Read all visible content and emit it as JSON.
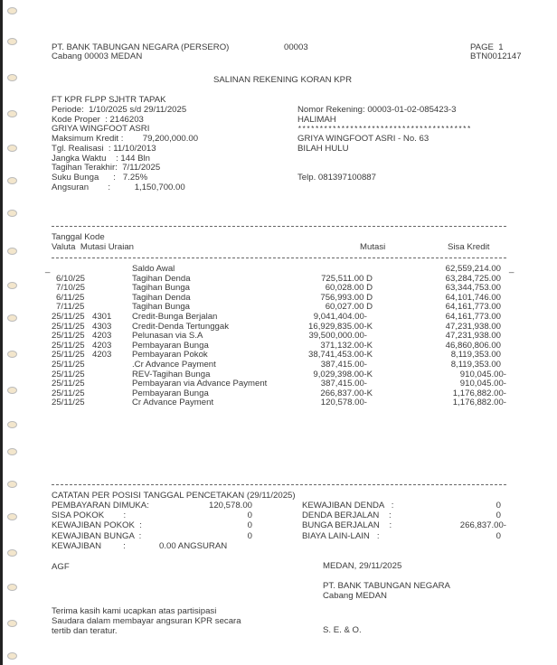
{
  "header": {
    "bank": "PT. BANK TABUNGAN NEGARA (PERSERO)",
    "branch": "Cabang 00003 MEDAN",
    "branch_code": "00003",
    "page": "PAGE  1",
    "doc_id": "BTN0012147"
  },
  "title": "SALINAN REKENING KORAN KPR",
  "info_left": [
    "FT KPR FLPP SJHTR TAPAK",
    "Periode:  1/10/2025 s/d 29/11/2025",
    "Kode Proper  : 2146203",
    "GRIYA WINGFOOT ASRI",
    "Maksimum Kredit :        79,200,000.00",
    "Tgl. Realisasi  : 11/10/2013",
    "Jangka Waktu    : 144 Bln",
    "Tagihan Terakhir:  7/11/2025",
    "Suku Bunga      :   7.25%",
    "Angsuran        :          1,150,700.00"
  ],
  "info_right": {
    "account": "Nomor Rekening: 00003-01-02-085423-3",
    "name": "HALIMAH",
    "stars": "****************************************",
    "address1": "GRIYA WINGFOOT ASRI - No. 63",
    "address2": "BILAH HULU",
    "phone": "Telp. 081397100887"
  },
  "table": {
    "headers": {
      "line1": "Tanggal Kode",
      "line2": "Valuta  Mutasi Uraian",
      "mutasi": "Mutasi",
      "sisa": "Sisa Kredit"
    },
    "rows": [
      {
        "date": "",
        "kode": "",
        "uraian": "Saldo Awal",
        "mutasi": "",
        "sisa": "62,559,214.00"
      },
      {
        "date": "6/10/25",
        "kode": "",
        "uraian": "Tagihan Denda",
        "mutasi": "725,511.00 D",
        "sisa": "63,284,725.00"
      },
      {
        "date": "7/10/25",
        "kode": "",
        "uraian": "Tagihan Bunga",
        "mutasi": "60,028.00 D",
        "sisa": "63,344,753.00"
      },
      {
        "date": "6/11/25",
        "kode": "",
        "uraian": "Tagihan Denda",
        "mutasi": "756,993.00 D",
        "sisa": "64,101,746.00"
      },
      {
        "date": "7/11/25",
        "kode": "",
        "uraian": "Tagihan Bunga",
        "mutasi": "60,027.00 D",
        "sisa": "64,161,773.00"
      },
      {
        "date": "25/11/25",
        "kode": "4301",
        "uraian": "Credit-Bunga Berjalan",
        "mutasi": "9,041,404.00-",
        "sisa": "64,161,773.00"
      },
      {
        "date": "25/11/25",
        "kode": "4303",
        "uraian": "Credit-Denda Tertunggak",
        "mutasi": "16,929,835.00-K",
        "sisa": "47,231,938.00"
      },
      {
        "date": "25/11/25",
        "kode": "4203",
        "uraian": "Pelunasan via S.A",
        "mutasi": "39,500,000.00-",
        "sisa": "47,231,938.00"
      },
      {
        "date": "25/11/25",
        "kode": "4203",
        "uraian": "Pembayaran Bunga",
        "mutasi": "371,132.00-K",
        "sisa": "46,860,806.00"
      },
      {
        "date": "25/11/25",
        "kode": "4203",
        "uraian": "Pembayaran Pokok",
        "mutasi": "38,741,453.00-K",
        "sisa": "8,119,353.00"
      },
      {
        "date": "25/11/25",
        "kode": "",
        "uraian": ".Cr Advance Payment",
        "mutasi": "387,415.00-",
        "sisa": "8,119,353.00"
      },
      {
        "date": "25/11/25",
        "kode": "",
        "uraian": "REV-Tagihan Bunga",
        "mutasi": "9,029,398.00-K",
        "sisa": "910,045.00-"
      },
      {
        "date": "25/11/25",
        "kode": "",
        "uraian": "Pembayaran via Advance Payment",
        "mutasi": "387,415.00-",
        "sisa": "910,045.00-"
      },
      {
        "date": "25/11/25",
        "kode": "",
        "uraian": "Pembayaran Bunga",
        "mutasi": "266,837.00-K",
        "sisa": "1,176,882.00-"
      },
      {
        "date": "25/11/25",
        "kode": "",
        "uraian": "Cr Advance Payment",
        "mutasi": "120,578.00-",
        "sisa": "1,176,882.00-"
      }
    ]
  },
  "notes": {
    "title": "CATATAN PER POSISI TANGGAL PENCETAKAN (29/11/2025)",
    "left": [
      {
        "label": "PEMBAYARAN DIMUKA:",
        "value": "120,578.00"
      },
      {
        "label": "SISA POKOK        :",
        "value": "0"
      },
      {
        "label": "KEWAJIBAN POKOK  :",
        "value": "0"
      },
      {
        "label": "KEWAJIBAN BUNGA  :",
        "value": "0"
      }
    ],
    "right": [
      {
        "label": "KEWAJIBAN DENDA   :",
        "value": "0"
      },
      {
        "label": "DENDA BERJALAN    :",
        "value": "0"
      },
      {
        "label": "BUNGA BERJALAN    :",
        "value": "266,837.00-"
      },
      {
        "label": "BIAYA LAIN-LAIN   :",
        "value": "0"
      }
    ],
    "kewajiban_label": "KEWAJIBAN         :",
    "kewajiban_value": "0.00 ANGSURAN"
  },
  "footer": {
    "code": "AGF",
    "place_date": "MEDAN, 29/11/2025",
    "bank": "PT. BANK TABUNGAN NEGARA",
    "branch": "Cabang MEDAN",
    "thanks": [
      "Terima kasih kami ucapkan atas partisipasi",
      "Saudara dalam membayar angsuran KPR secara",
      "tertib dan teratur."
    ],
    "seo": "S. E. & O."
  }
}
